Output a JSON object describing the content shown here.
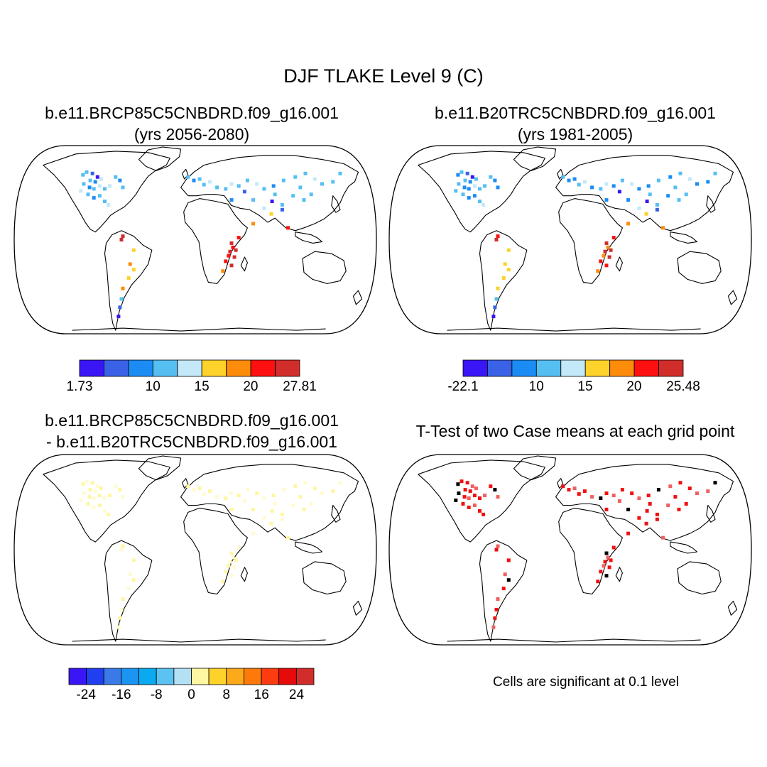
{
  "figure": {
    "title": "DJF TLAKE Level 9 (C)"
  },
  "panels": [
    {
      "id": "p1",
      "title_line1": "b.e11.BRCP85C5CNBDRD.f09_g16.001",
      "title_line2": "(yrs 2056-2080)",
      "colorbar": {
        "colors": [
          "#3a15f5",
          "#3a62e6",
          "#1c8cf5",
          "#55bff2",
          "#c3e8f8",
          "#fdd22a",
          "#fd8c0b",
          "#fc1010",
          "#d02d2b"
        ],
        "tick_labels": [
          "1.73",
          "10",
          "15",
          "20",
          "27.81"
        ]
      }
    },
    {
      "id": "p2",
      "title_line1": "b.e11.B20TRC5CNBDRD.f09_g16.001",
      "title_line2": "(yrs 1981-2005)",
      "colorbar": {
        "colors": [
          "#3a15f5",
          "#3a62e6",
          "#1c8cf5",
          "#55bff2",
          "#c3e8f8",
          "#fdd22a",
          "#fd8c0b",
          "#fc1010",
          "#d02d2b"
        ],
        "tick_labels": [
          "-22.1",
          "10",
          "15",
          "20",
          "25.48"
        ]
      }
    },
    {
      "id": "p3",
      "title_line1": "b.e11.BRCP85C5CNBDRD.f09_g16.001",
      "title_line2": "- b.e11.B20TRC5CNBDRD.f09_g16.001",
      "colorbar": {
        "colors": [
          "#3a15f5",
          "#1f3ff0",
          "#3a7ae8",
          "#1c94f2",
          "#0aaaf0",
          "#5cc2f2",
          "#b4e0f4",
          "#fff6a3",
          "#fdd22a",
          "#fca91a",
          "#fd7a0a",
          "#fb3c10",
          "#e60a0a",
          "#d02d2b"
        ],
        "tick_labels": [
          "-24",
          "-16",
          "-8",
          "0",
          "8",
          "16",
          "24"
        ]
      }
    },
    {
      "id": "p4",
      "title_line1": "T-Test of two Case means at each grid point",
      "note": "Cells are significant at 0.1 level"
    }
  ]
}
